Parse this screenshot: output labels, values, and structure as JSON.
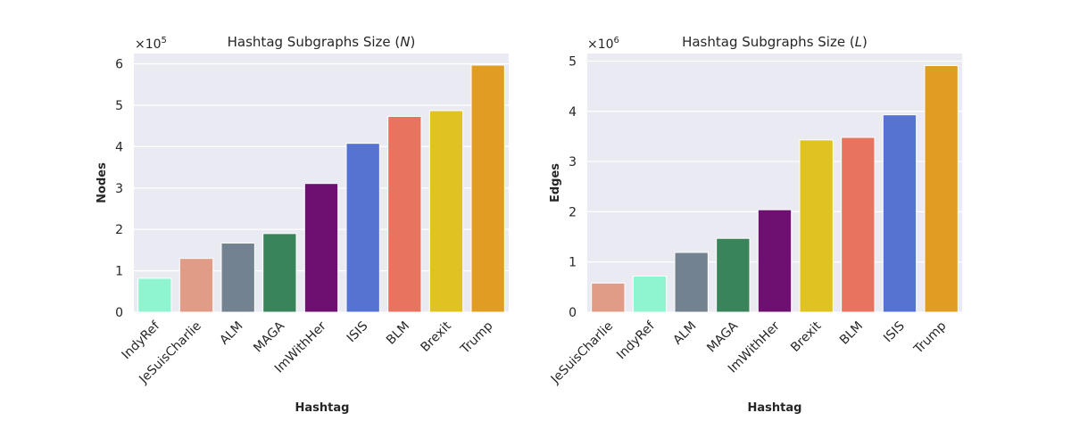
{
  "chart_data": [
    {
      "type": "bar",
      "title_prefix": "Hashtag Subgraphs Size (",
      "title_var": "N",
      "title_suffix": ")",
      "xlabel": "Hashtag",
      "ylabel": "Nodes",
      "multiplier_base": "×10",
      "multiplier_exp": "5",
      "ylim": [
        0,
        6.25
      ],
      "yticks": [
        0,
        1,
        2,
        3,
        4,
        5,
        6
      ],
      "categories": [
        "IndyRef",
        "JeSuisCharlie",
        "ALM",
        "MAGA",
        "ImWithHer",
        "ISIS",
        "BLM",
        "Brexit",
        "Trump"
      ],
      "values": [
        0.82,
        1.3,
        1.67,
        1.9,
        3.11,
        4.08,
        4.73,
        4.87,
        5.97
      ],
      "colors": [
        "#8ef5d0",
        "#e09c86",
        "#738290",
        "#39845a",
        "#6e0f72",
        "#5573d0",
        "#e8735f",
        "#e0c323",
        "#e09c23"
      ],
      "grid": true
    },
    {
      "type": "bar",
      "title_prefix": "Hashtag Subgraphs Size (",
      "title_var": "L",
      "title_suffix": ")",
      "xlabel": "Hashtag",
      "ylabel": "Edges",
      "multiplier_base": "×10",
      "multiplier_exp": "6",
      "ylim": [
        0,
        5.15
      ],
      "yticks": [
        0,
        1,
        2,
        3,
        4,
        5
      ],
      "categories": [
        "JeSuisCharlie",
        "IndyRef",
        "ALM",
        "MAGA",
        "ImWithHer",
        "Brexit",
        "BLM",
        "ISIS",
        "Trump"
      ],
      "values": [
        0.58,
        0.72,
        1.19,
        1.47,
        2.04,
        3.43,
        3.48,
        3.93,
        4.91
      ],
      "colors": [
        "#e09c86",
        "#8ef5d0",
        "#738290",
        "#39845a",
        "#6e0f72",
        "#e0c323",
        "#e8735f",
        "#5573d0",
        "#e09c23"
      ],
      "grid": true
    }
  ]
}
